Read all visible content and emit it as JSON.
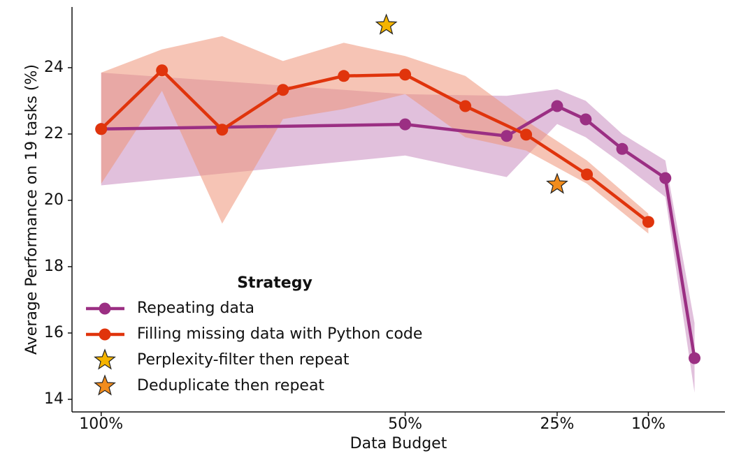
{
  "chart_data": {
    "type": "line",
    "xlabel": "Data Budget",
    "ylabel": "Average Performance on 19 tasks (%)",
    "xlim": [
      104.8,
      -2.6
    ],
    "xticks": [
      {
        "value": 100,
        "label": "100%"
      },
      {
        "value": 50,
        "label": "50%"
      },
      {
        "value": 25,
        "label": "25%"
      },
      {
        "value": 10,
        "label": "10%"
      }
    ],
    "ylim": [
      13.62,
      25.83
    ],
    "yticks": [
      14,
      16,
      18,
      20,
      22,
      24
    ],
    "legend_title": "Strategy",
    "legend": "lower left",
    "series": [
      {
        "name": "Repeating data",
        "color": "#9b2f83",
        "band_color": "#c98cc0",
        "x": [
          100,
          50,
          33.3,
          25,
          20.3,
          14.3,
          7.2,
          2.4
        ],
        "values": [
          22.15,
          22.29,
          21.94,
          22.84,
          22.44,
          21.55,
          20.67,
          15.24
        ],
        "upper": [
          23.85,
          23.2,
          23.15,
          23.35,
          23.0,
          22.0,
          21.2,
          16.3
        ],
        "lower": [
          20.45,
          21.35,
          20.7,
          22.3,
          21.9,
          21.1,
          20.1,
          14.2
        ]
      },
      {
        "name": "Filling missing data with Python code",
        "color": "#e0340c",
        "band_color": "#ef9478",
        "x": [
          100,
          90,
          80.1,
          70.1,
          60.1,
          50,
          40.1,
          30.1,
          20.1,
          10
        ],
        "values": [
          22.15,
          23.92,
          22.13,
          23.33,
          23.75,
          23.79,
          22.84,
          21.98,
          20.78,
          19.35
        ],
        "upper": [
          23.85,
          24.55,
          24.95,
          24.2,
          24.75,
          24.35,
          23.75,
          22.4,
          21.2,
          19.6
        ],
        "lower": [
          20.5,
          23.3,
          19.3,
          22.45,
          22.75,
          23.2,
          21.9,
          21.5,
          20.5,
          19.0
        ]
      }
    ],
    "stars": [
      {
        "name": "Perplexity-filter then repeat",
        "color": "#f5b400",
        "x": 53.1,
        "y": 25.28
      },
      {
        "name": "Deduplicate then repeat",
        "color": "#f28c1c",
        "x": 25,
        "y": 20.48
      }
    ]
  }
}
